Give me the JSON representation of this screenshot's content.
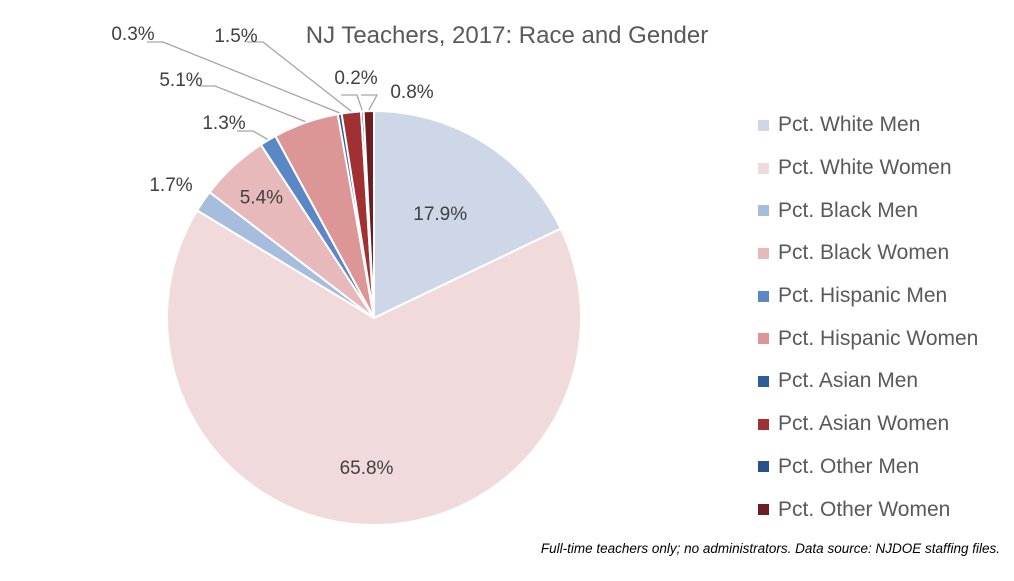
{
  "chart_data": {
    "type": "pie",
    "title": "NJ Teachers, 2017: Race and Gender",
    "categories": [
      "Pct. White Men",
      "Pct. White Women",
      "Pct. Black Men",
      "Pct. Black Women",
      "Pct. Hispanic Men",
      "Pct. Hispanic Women",
      "Pct. Asian Men",
      "Pct. Asian Women",
      "Pct. Other Men",
      "Pct. Other Women"
    ],
    "values": [
      17.9,
      65.8,
      1.7,
      5.4,
      1.3,
      5.1,
      0.3,
      1.5,
      0.2,
      0.8
    ],
    "labels": [
      "17.9%",
      "65.8%",
      "1.7%",
      "5.4%",
      "1.3%",
      "5.1%",
      "0.3%",
      "1.5%",
      "0.2%",
      "0.8%"
    ],
    "colors": [
      "#cdd7e8",
      "#f0dadb",
      "#a6bddd",
      "#e8b9ba",
      "#5a88c6",
      "#dc9696",
      "#2f5d9c",
      "#a13032",
      "#27508d",
      "#6e1e20"
    ],
    "legend_position": "right",
    "footnote": "Full-time teachers only; no administrators. Data source: NJDOE staffing files."
  }
}
